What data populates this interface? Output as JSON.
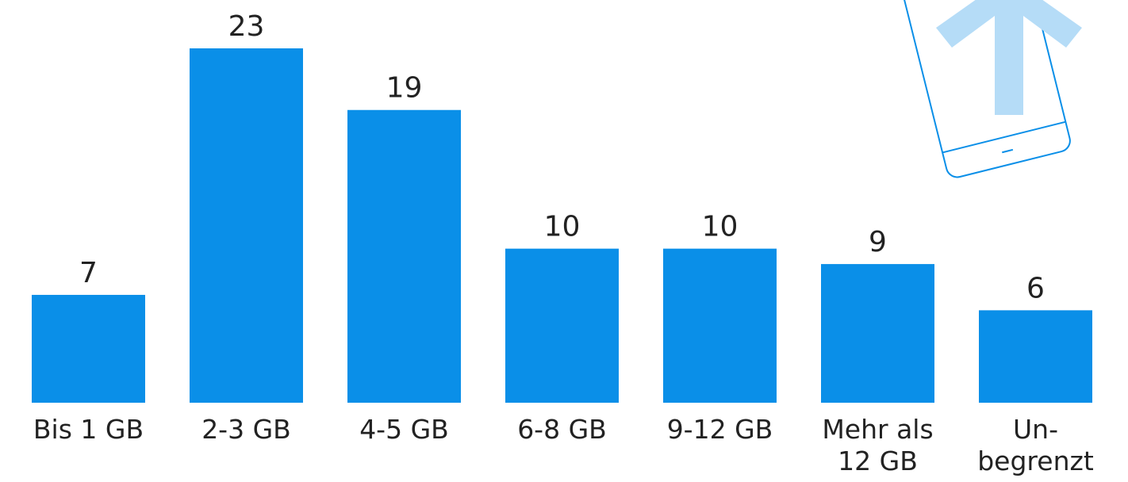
{
  "chart_data": {
    "type": "bar",
    "categories": [
      "Bis 1 GB",
      "2-3 GB",
      "4-5 GB",
      "6-8 GB",
      "9-12 GB",
      "Mehr als\n12 GB",
      "Un-\nbegrenzt"
    ],
    "values": [
      7,
      23,
      19,
      10,
      10,
      9,
      6
    ],
    "color": "#0a8fe8"
  }
}
